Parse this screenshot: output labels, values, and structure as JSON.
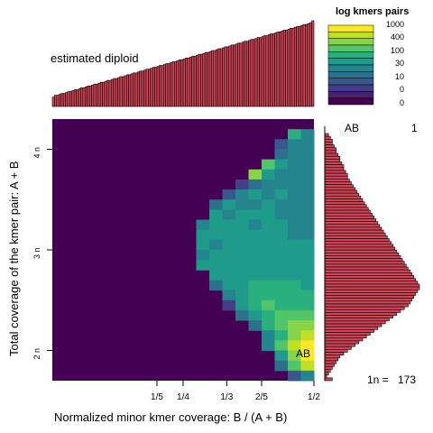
{
  "chart_data": {
    "type": "heatmap",
    "title": "",
    "xlabel": "Normalized minor kmer coverage: B / (A + B)",
    "ylabel": "Total coverage of the kmer pair: A + B",
    "x_ticks": [
      {
        "label": "1/5",
        "value": 0.2
      },
      {
        "label": "1/4",
        "value": 0.25
      },
      {
        "label": "1/3",
        "value": 0.3333
      },
      {
        "label": "2/5",
        "value": 0.4
      },
      {
        "label": "1/2",
        "value": 0.5
      }
    ],
    "y_ticks": [
      {
        "label": "2 n",
        "value": 2
      },
      {
        "label": "3 n",
        "value": 3
      },
      {
        "label": "4 n",
        "value": 4
      }
    ],
    "xlim": [
      0,
      0.5
    ],
    "ylim": [
      1.7,
      4.3
    ],
    "legend": {
      "title": "log kmers pairs",
      "labels": [
        "1000",
        "400",
        "100",
        "30",
        "10",
        "0",
        "0"
      ],
      "colors": [
        "#fde725",
        "#c2df23",
        "#86d549",
        "#52c569",
        "#2ab07f",
        "#1e9b8a",
        "#25858e",
        "#2d708e",
        "#38588c",
        "#433e85",
        "#482173",
        "#440154"
      ]
    },
    "annotations": {
      "top_text": "estimated diploid",
      "heatmap_peak": "AB",
      "side_peak": "AB",
      "side_peak_value": "1",
      "side_footer_label": "1n =",
      "side_footer_value": "173"
    },
    "background_color": "#440154",
    "x_hist_color": "#cf4456",
    "heatmap_rows": [
      {
        "y": 4.15,
        "cells": [
          {
            "x": 0.4625,
            "c": 4
          },
          {
            "x": 0.4875,
            "c": 6
          }
        ]
      },
      {
        "y": 4.05,
        "cells": [
          {
            "x": 0.4375,
            "c": 8
          },
          {
            "x": 0.4625,
            "c": 6
          },
          {
            "x": 0.4875,
            "c": 6
          }
        ]
      },
      {
        "y": 3.95,
        "cells": [
          {
            "x": 0.4375,
            "c": 7
          },
          {
            "x": 0.4625,
            "c": 6
          },
          {
            "x": 0.4875,
            "c": 6
          }
        ]
      },
      {
        "y": 3.85,
        "cells": [
          {
            "x": 0.4125,
            "c": 3
          },
          {
            "x": 0.4375,
            "c": 5
          },
          {
            "x": 0.4625,
            "c": 6
          },
          {
            "x": 0.4875,
            "c": 6
          }
        ]
      },
      {
        "y": 3.75,
        "cells": [
          {
            "x": 0.3875,
            "c": 2
          },
          {
            "x": 0.4125,
            "c": 5
          },
          {
            "x": 0.4375,
            "c": 6
          },
          {
            "x": 0.4625,
            "c": 6
          },
          {
            "x": 0.4875,
            "c": 6
          }
        ]
      },
      {
        "y": 3.65,
        "cells": [
          {
            "x": 0.3625,
            "c": 9
          },
          {
            "x": 0.3875,
            "c": 7
          },
          {
            "x": 0.4125,
            "c": 6
          },
          {
            "x": 0.4375,
            "c": 6
          },
          {
            "x": 0.4625,
            "c": 6
          },
          {
            "x": 0.4875,
            "c": 6
          }
        ]
      },
      {
        "y": 3.55,
        "cells": [
          {
            "x": 0.3375,
            "c": 8
          },
          {
            "x": 0.3625,
            "c": 6
          },
          {
            "x": 0.3875,
            "c": 5
          },
          {
            "x": 0.4125,
            "c": 6
          },
          {
            "x": 0.4375,
            "c": 5
          },
          {
            "x": 0.4625,
            "c": 6
          },
          {
            "x": 0.4875,
            "c": 6
          }
        ]
      },
      {
        "y": 3.45,
        "cells": [
          {
            "x": 0.3125,
            "c": 7
          },
          {
            "x": 0.3375,
            "c": 5
          },
          {
            "x": 0.3625,
            "c": 6
          },
          {
            "x": 0.3875,
            "c": 6
          },
          {
            "x": 0.4125,
            "c": 5
          },
          {
            "x": 0.4375,
            "c": 6
          },
          {
            "x": 0.4625,
            "c": 6
          },
          {
            "x": 0.4875,
            "c": 6
          }
        ]
      },
      {
        "y": 3.35,
        "cells": [
          {
            "x": 0.3125,
            "c": 5
          },
          {
            "x": 0.3375,
            "c": 6
          },
          {
            "x": 0.3625,
            "c": 5
          },
          {
            "x": 0.3875,
            "c": 5
          },
          {
            "x": 0.4125,
            "c": 5
          },
          {
            "x": 0.4375,
            "c": 6
          },
          {
            "x": 0.4625,
            "c": 6
          },
          {
            "x": 0.4875,
            "c": 6
          }
        ]
      },
      {
        "y": 3.25,
        "cells": [
          {
            "x": 0.2875,
            "c": 6
          },
          {
            "x": 0.3125,
            "c": 5
          },
          {
            "x": 0.3375,
            "c": 5
          },
          {
            "x": 0.3625,
            "c": 5
          },
          {
            "x": 0.3875,
            "c": 6
          },
          {
            "x": 0.4125,
            "c": 5
          },
          {
            "x": 0.4375,
            "c": 5
          },
          {
            "x": 0.4625,
            "c": 6
          },
          {
            "x": 0.4875,
            "c": 6
          }
        ]
      },
      {
        "y": 3.15,
        "cells": [
          {
            "x": 0.2875,
            "c": 5
          },
          {
            "x": 0.3125,
            "c": 5
          },
          {
            "x": 0.3375,
            "c": 5
          },
          {
            "x": 0.3625,
            "c": 5
          },
          {
            "x": 0.3875,
            "c": 5
          },
          {
            "x": 0.4125,
            "c": 5
          },
          {
            "x": 0.4375,
            "c": 5
          },
          {
            "x": 0.4625,
            "c": 6
          },
          {
            "x": 0.4875,
            "c": 6
          }
        ]
      },
      {
        "y": 3.05,
        "cells": [
          {
            "x": 0.2875,
            "c": 5
          },
          {
            "x": 0.3125,
            "c": 6
          },
          {
            "x": 0.3375,
            "c": 5
          },
          {
            "x": 0.3625,
            "c": 5
          },
          {
            "x": 0.3875,
            "c": 5
          },
          {
            "x": 0.4125,
            "c": 5
          },
          {
            "x": 0.4375,
            "c": 5
          },
          {
            "x": 0.4625,
            "c": 5
          },
          {
            "x": 0.4875,
            "c": 5
          }
        ]
      },
      {
        "y": 2.95,
        "cells": [
          {
            "x": 0.2875,
            "c": 6
          },
          {
            "x": 0.3125,
            "c": 5
          },
          {
            "x": 0.3375,
            "c": 5
          },
          {
            "x": 0.3625,
            "c": 5
          },
          {
            "x": 0.3875,
            "c": 5
          },
          {
            "x": 0.4125,
            "c": 5
          },
          {
            "x": 0.4375,
            "c": 5
          },
          {
            "x": 0.4625,
            "c": 5
          },
          {
            "x": 0.4875,
            "c": 5
          }
        ]
      },
      {
        "y": 2.85,
        "cells": [
          {
            "x": 0.2875,
            "c": 5
          },
          {
            "x": 0.3125,
            "c": 5
          },
          {
            "x": 0.3375,
            "c": 5
          },
          {
            "x": 0.3625,
            "c": 5
          },
          {
            "x": 0.3875,
            "c": 5
          },
          {
            "x": 0.4125,
            "c": 5
          },
          {
            "x": 0.4375,
            "c": 5
          },
          {
            "x": 0.4625,
            "c": 5
          },
          {
            "x": 0.4875,
            "c": 5
          }
        ]
      },
      {
        "y": 2.75,
        "cells": [
          {
            "x": 0.3125,
            "c": 5
          },
          {
            "x": 0.3375,
            "c": 5
          },
          {
            "x": 0.3625,
            "c": 5
          },
          {
            "x": 0.3875,
            "c": 5
          },
          {
            "x": 0.4125,
            "c": 5
          },
          {
            "x": 0.4375,
            "c": 5
          },
          {
            "x": 0.4625,
            "c": 5
          },
          {
            "x": 0.4875,
            "c": 5
          }
        ]
      },
      {
        "y": 2.65,
        "cells": [
          {
            "x": 0.3125,
            "c": 7
          },
          {
            "x": 0.3375,
            "c": 5
          },
          {
            "x": 0.3625,
            "c": 5
          },
          {
            "x": 0.3875,
            "c": 4
          },
          {
            "x": 0.4125,
            "c": 4
          },
          {
            "x": 0.4375,
            "c": 4
          },
          {
            "x": 0.4625,
            "c": 4
          },
          {
            "x": 0.4875,
            "c": 5
          }
        ]
      },
      {
        "y": 2.55,
        "cells": [
          {
            "x": 0.3375,
            "c": 6
          },
          {
            "x": 0.3625,
            "c": 5
          },
          {
            "x": 0.3875,
            "c": 4
          },
          {
            "x": 0.4125,
            "c": 4
          },
          {
            "x": 0.4375,
            "c": 4
          },
          {
            "x": 0.4625,
            "c": 4
          },
          {
            "x": 0.4875,
            "c": 4
          }
        ]
      },
      {
        "y": 2.45,
        "cells": [
          {
            "x": 0.3375,
            "c": 9
          },
          {
            "x": 0.3625,
            "c": 5
          },
          {
            "x": 0.3875,
            "c": 4
          },
          {
            "x": 0.4125,
            "c": 3
          },
          {
            "x": 0.4375,
            "c": 4
          },
          {
            "x": 0.4625,
            "c": 4
          },
          {
            "x": 0.4875,
            "c": 4
          }
        ]
      },
      {
        "y": 2.35,
        "cells": [
          {
            "x": 0.3625,
            "c": 7
          },
          {
            "x": 0.3875,
            "c": 5
          },
          {
            "x": 0.4125,
            "c": 4
          },
          {
            "x": 0.4375,
            "c": 3
          },
          {
            "x": 0.4625,
            "c": 3
          },
          {
            "x": 0.4875,
            "c": 3
          }
        ]
      },
      {
        "y": 2.25,
        "cells": [
          {
            "x": 0.3875,
            "c": 7
          },
          {
            "x": 0.4125,
            "c": 4
          },
          {
            "x": 0.4375,
            "c": 3
          },
          {
            "x": 0.4625,
            "c": 2
          },
          {
            "x": 0.4875,
            "c": 2
          }
        ]
      },
      {
        "y": 2.15,
        "cells": [
          {
            "x": 0.4125,
            "c": 6
          },
          {
            "x": 0.4375,
            "c": 4
          },
          {
            "x": 0.4625,
            "c": 2
          },
          {
            "x": 0.4875,
            "c": 1
          }
        ]
      },
      {
        "y": 2.05,
        "cells": [
          {
            "x": 0.4125,
            "c": 6
          },
          {
            "x": 0.4375,
            "c": 3
          },
          {
            "x": 0.4625,
            "c": 1
          },
          {
            "x": 0.4875,
            "c": 0
          }
        ]
      },
      {
        "y": 1.95,
        "cells": [
          {
            "x": 0.4375,
            "c": 5
          },
          {
            "x": 0.4625,
            "c": 2
          },
          {
            "x": 0.4875,
            "c": 0
          }
        ]
      },
      {
        "y": 1.85,
        "cells": [
          {
            "x": 0.4375,
            "c": 7
          },
          {
            "x": 0.4625,
            "c": 3
          },
          {
            "x": 0.4875,
            "c": 1
          }
        ]
      },
      {
        "y": 1.75,
        "cells": [
          {
            "x": 0.4625,
            "c": 8
          },
          {
            "x": 0.4875,
            "c": 6
          }
        ]
      }
    ],
    "x_histogram": [
      10,
      12,
      12,
      13,
      14,
      14,
      15,
      16,
      16,
      17,
      18,
      18,
      19,
      20,
      20,
      21,
      22,
      22,
      23,
      24,
      24,
      25,
      26,
      26,
      27,
      28,
      28,
      29,
      30,
      30,
      31,
      32,
      32,
      33,
      34,
      34,
      35,
      36,
      36,
      37,
      38,
      38,
      39,
      40,
      40,
      41,
      42,
      42,
      43,
      44,
      44,
      45,
      46,
      46,
      47,
      48,
      48,
      49,
      50,
      50,
      51,
      52,
      52,
      53,
      54,
      54,
      55,
      56,
      56,
      57,
      58,
      58,
      59,
      60,
      60,
      61,
      62,
      62,
      63,
      64,
      64,
      65,
      66,
      66,
      67,
      68,
      68,
      69,
      70,
      70,
      71,
      72,
      72,
      73,
      74,
      74,
      75,
      76,
      76,
      77,
      78,
      78,
      79,
      80,
      80,
      81,
      82,
      82,
      83,
      84,
      84,
      85,
      86,
      86,
      87,
      88,
      88,
      89,
      90,
      92
    ],
    "y_histogram": [
      4,
      6,
      8,
      8,
      10,
      12,
      12,
      14,
      16,
      16,
      18,
      20,
      20,
      22,
      24,
      24,
      26,
      28,
      30,
      32,
      34,
      36,
      38,
      40,
      42,
      44,
      46,
      48,
      50,
      52,
      54,
      56,
      58,
      60,
      62,
      64,
      66,
      68,
      70,
      72,
      74,
      76,
      78,
      80,
      82,
      84,
      86,
      88,
      90,
      92,
      94,
      96,
      98,
      100,
      100,
      98,
      96,
      94,
      92,
      90,
      88,
      84,
      80,
      76,
      72,
      68,
      64,
      60,
      56,
      52,
      48,
      44,
      40,
      36,
      32,
      28,
      24,
      20,
      16,
      14,
      12,
      10,
      8,
      6,
      4,
      2,
      8
    ]
  }
}
